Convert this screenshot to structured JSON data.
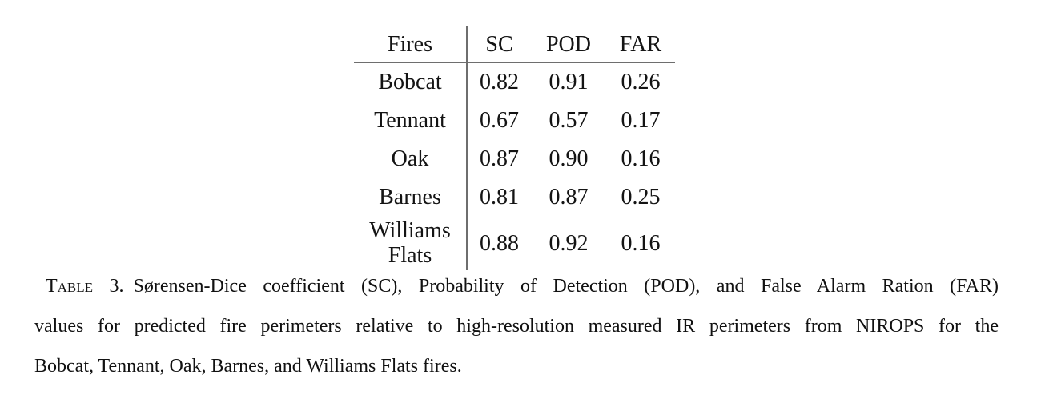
{
  "table": {
    "columns": {
      "fires": "Fires",
      "sc": "SC",
      "pod": "POD",
      "far": "FAR"
    },
    "rows": [
      {
        "name": "Bobcat",
        "sc": "0.82",
        "pod": "0.91",
        "far": "0.26"
      },
      {
        "name": "Tennant",
        "sc": "0.67",
        "pod": "0.57",
        "far": "0.17"
      },
      {
        "name": "Oak",
        "sc": "0.87",
        "pod": "0.90",
        "far": "0.16"
      },
      {
        "name": "Barnes",
        "sc": "0.81",
        "pod": "0.87",
        "far": "0.25"
      },
      {
        "name": "Williams Flats",
        "sc": "0.88",
        "pod": "0.92",
        "far": "0.16"
      }
    ]
  },
  "caption": {
    "label": "Table 3.",
    "line1": "Sørensen-Dice coefficient (SC), Probability of Detection (POD), and False Alarm Ration (FAR)",
    "line2": "values for predicted fire perimeters relative to high-resolution measured IR perimeters from NIROPS for the",
    "line3": "Bobcat, Tennant, Oak, Barnes, and Williams Flats fires."
  },
  "colors": {
    "text": "#141414",
    "rule": "#6e6e6e",
    "background": "#ffffff"
  }
}
